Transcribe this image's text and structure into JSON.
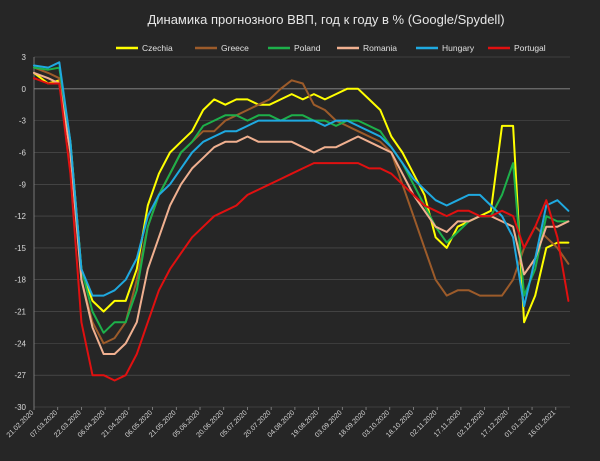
{
  "chart_data": {
    "type": "line",
    "title": "Динамика прогнозного ВВП, год к году в % (Google/Spydell)",
    "xlabel": "",
    "ylabel": "",
    "ylim": [
      -30,
      3
    ],
    "yticks": [
      3,
      0,
      -3,
      -6,
      -9,
      -12,
      -15,
      -18,
      -21,
      -24,
      -27,
      -30
    ],
    "grid": true,
    "legend_position": "top",
    "x_start": "21.02.2020",
    "x_end": "25.01.2021",
    "xtick_labels": [
      "21.02.2020",
      "07.03.2020",
      "22.03.2020",
      "06.04.2020",
      "21.04.2020",
      "06.05.2020",
      "21.05.2020",
      "05.06.2020",
      "20.06.2020",
      "05.07.2020",
      "20.07.2020",
      "04.08.2020",
      "19.08.2020",
      "03.09.2020",
      "18.09.2020",
      "03.10.2020",
      "18.10.2020",
      "02.11.2020",
      "17.11.2020",
      "02.12.2020",
      "17.12.2020",
      "01.01.2021",
      "16.01.2021"
    ],
    "series": [
      {
        "name": "Czechia",
        "color": "#ffff00",
        "x": [
          "21.02.2020",
          "01.03.2020",
          "08.03.2020",
          "15.03.2020",
          "22.03.2020",
          "29.03.2020",
          "05.04.2020",
          "12.04.2020",
          "19.04.2020",
          "26.04.2020",
          "03.05.2020",
          "10.05.2020",
          "17.05.2020",
          "24.05.2020",
          "31.05.2020",
          "07.06.2020",
          "14.06.2020",
          "21.06.2020",
          "28.06.2020",
          "05.07.2020",
          "12.07.2020",
          "19.07.2020",
          "26.07.2020",
          "02.08.2020",
          "09.08.2020",
          "16.08.2020",
          "23.08.2020",
          "30.08.2020",
          "06.09.2020",
          "13.09.2020",
          "20.09.2020",
          "27.09.2020",
          "04.10.2020",
          "11.10.2020",
          "18.10.2020",
          "25.10.2020",
          "01.11.2020",
          "08.11.2020",
          "15.11.2020",
          "22.11.2020",
          "29.11.2020",
          "06.12.2020",
          "13.12.2020",
          "20.12.2020",
          "27.12.2020",
          "03.01.2021",
          "10.01.2021",
          "17.01.2021",
          "24.01.2021"
        ],
        "values": [
          1.5,
          0.5,
          0.8,
          -5,
          -17,
          -20,
          -21,
          -20,
          -20,
          -17,
          -11,
          -8,
          -6,
          -5,
          -4,
          -2,
          -1,
          -1.5,
          -1,
          -1,
          -1.5,
          -1.5,
          -1,
          -0.5,
          -1,
          -0.5,
          -1,
          -0.5,
          0,
          0,
          -1,
          -2,
          -4.5,
          -6,
          -8,
          -10,
          -14,
          -15,
          -13,
          -12.5,
          -12,
          -11.5,
          -3.5,
          -3.5,
          -22,
          -19.5,
          -15,
          -14.5,
          -14.5
        ]
      },
      {
        "name": "Greece",
        "color": "#9c5b2a",
        "x": [
          "21.02.2020",
          "01.03.2020",
          "08.03.2020",
          "15.03.2020",
          "22.03.2020",
          "29.03.2020",
          "05.04.2020",
          "12.04.2020",
          "19.04.2020",
          "26.04.2020",
          "03.05.2020",
          "10.05.2020",
          "17.05.2020",
          "24.05.2020",
          "31.05.2020",
          "07.06.2020",
          "14.06.2020",
          "21.06.2020",
          "28.06.2020",
          "05.07.2020",
          "12.07.2020",
          "19.07.2020",
          "26.07.2020",
          "02.08.2020",
          "09.08.2020",
          "16.08.2020",
          "23.08.2020",
          "30.08.2020",
          "06.09.2020",
          "13.09.2020",
          "20.09.2020",
          "27.09.2020",
          "04.10.2020",
          "11.10.2020",
          "18.10.2020",
          "25.10.2020",
          "01.11.2020",
          "08.11.2020",
          "15.11.2020",
          "22.11.2020",
          "29.11.2020",
          "06.12.2020",
          "13.12.2020",
          "20.12.2020",
          "27.12.2020",
          "03.01.2021",
          "10.01.2021",
          "17.01.2021",
          "24.01.2021"
        ],
        "values": [
          2,
          1.5,
          1,
          -6,
          -18,
          -22,
          -24,
          -23.5,
          -22,
          -18,
          -13,
          -10,
          -8,
          -6,
          -5,
          -4,
          -4,
          -3,
          -2.5,
          -2,
          -1.5,
          -1,
          0,
          0.8,
          0.5,
          -1.5,
          -2,
          -3,
          -3.5,
          -4,
          -4.5,
          -5,
          -6,
          -9,
          -12,
          -15,
          -18,
          -19.5,
          -19,
          -19,
          -19.5,
          -19.5,
          -19.5,
          -18,
          -15,
          -13,
          -14,
          -15,
          -16.5
        ]
      },
      {
        "name": "Poland",
        "color": "#1db04a",
        "x": [
          "21.02.2020",
          "01.03.2020",
          "08.03.2020",
          "15.03.2020",
          "22.03.2020",
          "29.03.2020",
          "05.04.2020",
          "12.04.2020",
          "19.04.2020",
          "26.04.2020",
          "03.05.2020",
          "10.05.2020",
          "17.05.2020",
          "24.05.2020",
          "31.05.2020",
          "07.06.2020",
          "14.06.2020",
          "21.06.2020",
          "28.06.2020",
          "05.07.2020",
          "12.07.2020",
          "19.07.2020",
          "26.07.2020",
          "02.08.2020",
          "09.08.2020",
          "16.08.2020",
          "23.08.2020",
          "30.08.2020",
          "06.09.2020",
          "13.09.2020",
          "20.09.2020",
          "27.09.2020",
          "04.10.2020",
          "11.10.2020",
          "18.10.2020",
          "25.10.2020",
          "01.11.2020",
          "08.11.2020",
          "15.11.2020",
          "22.11.2020",
          "29.11.2020",
          "06.12.2020",
          "13.12.2020",
          "20.12.2020",
          "27.12.2020",
          "03.01.2021",
          "10.01.2021",
          "17.01.2021",
          "24.01.2021"
        ],
        "values": [
          2,
          1.8,
          2,
          -5,
          -17,
          -21,
          -23,
          -22,
          -22,
          -19,
          -13,
          -10,
          -8,
          -6,
          -5,
          -3.5,
          -3,
          -2.5,
          -2.5,
          -3,
          -2.5,
          -2.5,
          -3,
          -2.5,
          -2.5,
          -3,
          -3,
          -3.5,
          -3,
          -3,
          -3.5,
          -4,
          -5.5,
          -7,
          -9,
          -11,
          -13,
          -14.5,
          -13.5,
          -12.5,
          -12,
          -12,
          -10,
          -7,
          -19.5,
          -17,
          -12,
          -12.5,
          -12.5
        ]
      },
      {
        "name": "Romania",
        "color": "#f0b090",
        "x": [
          "21.02.2020",
          "01.03.2020",
          "08.03.2020",
          "15.03.2020",
          "22.03.2020",
          "29.03.2020",
          "05.04.2020",
          "12.04.2020",
          "19.04.2020",
          "26.04.2020",
          "03.05.2020",
          "10.05.2020",
          "17.05.2020",
          "24.05.2020",
          "31.05.2020",
          "07.06.2020",
          "14.06.2020",
          "21.06.2020",
          "28.06.2020",
          "05.07.2020",
          "12.07.2020",
          "19.07.2020",
          "26.07.2020",
          "02.08.2020",
          "09.08.2020",
          "16.08.2020",
          "23.08.2020",
          "30.08.2020",
          "06.09.2020",
          "13.09.2020",
          "20.09.2020",
          "27.09.2020",
          "04.10.2020",
          "11.10.2020",
          "18.10.2020",
          "25.10.2020",
          "01.11.2020",
          "08.11.2020",
          "15.11.2020",
          "22.11.2020",
          "29.11.2020",
          "06.12.2020",
          "13.12.2020",
          "20.12.2020",
          "27.12.2020",
          "03.01.2021",
          "10.01.2021",
          "17.01.2021",
          "24.01.2021"
        ],
        "values": [
          1.5,
          1,
          0.5,
          -6,
          -18,
          -22.5,
          -25,
          -25,
          -24,
          -22,
          -17,
          -14,
          -11,
          -9,
          -7.5,
          -6.5,
          -5.5,
          -5,
          -5,
          -4.5,
          -5,
          -5,
          -5,
          -5,
          -5.5,
          -6,
          -5.5,
          -5.5,
          -5,
          -4.5,
          -5,
          -5.5,
          -6,
          -8,
          -10,
          -11.5,
          -13,
          -13.5,
          -12.5,
          -12.5,
          -12,
          -12,
          -12.5,
          -13,
          -17.5,
          -16,
          -13,
          -13,
          -12.5
        ]
      },
      {
        "name": "Hungary",
        "color": "#1fa9e0",
        "x": [
          "21.02.2020",
          "01.03.2020",
          "08.03.2020",
          "15.03.2020",
          "22.03.2020",
          "29.03.2020",
          "05.04.2020",
          "12.04.2020",
          "19.04.2020",
          "26.04.2020",
          "03.05.2020",
          "10.05.2020",
          "17.05.2020",
          "24.05.2020",
          "31.05.2020",
          "07.06.2020",
          "14.06.2020",
          "21.06.2020",
          "28.06.2020",
          "05.07.2020",
          "12.07.2020",
          "19.07.2020",
          "26.07.2020",
          "02.08.2020",
          "09.08.2020",
          "16.08.2020",
          "23.08.2020",
          "30.08.2020",
          "06.09.2020",
          "13.09.2020",
          "20.09.2020",
          "27.09.2020",
          "04.10.2020",
          "11.10.2020",
          "18.10.2020",
          "25.10.2020",
          "01.11.2020",
          "08.11.2020",
          "15.11.2020",
          "22.11.2020",
          "29.11.2020",
          "06.12.2020",
          "13.12.2020",
          "20.12.2020",
          "27.12.2020",
          "03.01.2021",
          "10.01.2021",
          "17.01.2021",
          "24.01.2021"
        ],
        "values": [
          2.2,
          2,
          2.5,
          -5,
          -17,
          -19.5,
          -19.5,
          -19,
          -18,
          -16,
          -12,
          -10,
          -9,
          -7.5,
          -6,
          -5,
          -4.5,
          -4,
          -4,
          -3.5,
          -3,
          -3,
          -3,
          -3,
          -3,
          -3,
          -3.5,
          -3,
          -3,
          -3.5,
          -4,
          -4.5,
          -5.5,
          -7,
          -8.5,
          -9.5,
          -10.5,
          -11,
          -10.5,
          -10,
          -10,
          -11,
          -12,
          -14,
          -20.5,
          -16,
          -11,
          -10.5,
          -11.5
        ]
      },
      {
        "name": "Portugal",
        "color": "#e01010",
        "x": [
          "21.02.2020",
          "01.03.2020",
          "08.03.2020",
          "15.03.2020",
          "22.03.2020",
          "29.03.2020",
          "05.04.2020",
          "12.04.2020",
          "19.04.2020",
          "26.04.2020",
          "03.05.2020",
          "10.05.2020",
          "17.05.2020",
          "24.05.2020",
          "31.05.2020",
          "07.06.2020",
          "14.06.2020",
          "21.06.2020",
          "28.06.2020",
          "05.07.2020",
          "12.07.2020",
          "19.07.2020",
          "26.07.2020",
          "02.08.2020",
          "09.08.2020",
          "16.08.2020",
          "23.08.2020",
          "30.08.2020",
          "06.09.2020",
          "13.09.2020",
          "20.09.2020",
          "27.09.2020",
          "04.10.2020",
          "11.10.2020",
          "18.10.2020",
          "25.10.2020",
          "01.11.2020",
          "08.11.2020",
          "15.11.2020",
          "22.11.2020",
          "29.11.2020",
          "06.12.2020",
          "13.12.2020",
          "20.12.2020",
          "27.12.2020",
          "03.01.2021",
          "10.01.2021",
          "17.01.2021",
          "24.01.2021"
        ],
        "values": [
          1,
          0.5,
          0.5,
          -8,
          -22,
          -27,
          -27,
          -27.5,
          -27,
          -25,
          -22,
          -19,
          -17,
          -15.5,
          -14,
          -13,
          -12,
          -11.5,
          -11,
          -10,
          -9.5,
          -9,
          -8.5,
          -8,
          -7.5,
          -7,
          -7,
          -7,
          -7,
          -7,
          -7.5,
          -7.5,
          -8,
          -9,
          -10,
          -11,
          -11.5,
          -12,
          -11.5,
          -11.5,
          -12,
          -12,
          -11.5,
          -12,
          -15,
          -13,
          -10.5,
          -14,
          -20
        ]
      }
    ]
  }
}
